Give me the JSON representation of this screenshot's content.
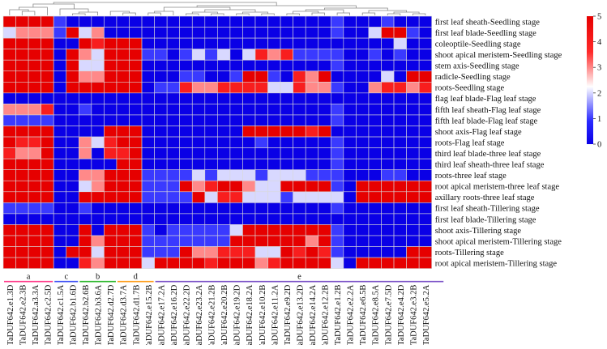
{
  "chart_data": {
    "type": "heatmap",
    "color_scale": {
      "min": 0,
      "max": 5,
      "ticks": [
        "0",
        "1",
        "2",
        "3",
        "4",
        "5"
      ],
      "colors": [
        "#0a00e6",
        "#2a2aff",
        "#ffffff",
        "#ff2a2a",
        "#e60000"
      ]
    },
    "groups": [
      {
        "label": "a",
        "color": "#ff3b8a",
        "start": 0,
        "end": 3
      },
      {
        "label": "c",
        "color": "#3f51f5",
        "start": 4,
        "end": 5
      },
      {
        "label": "b",
        "color": "#2eb82e",
        "start": 6,
        "end": 8
      },
      {
        "label": "d",
        "color": "#ff9e1b",
        "start": 9,
        "end": 11
      },
      {
        "label": "e",
        "color": "#7b52c7",
        "start": 12,
        "end": 34
      }
    ],
    "rows": [
      "first leaf sheath-Seedling stage",
      "first leaf blade-Seedling stage",
      "coleoptile-Seedling stage",
      "shoot apical meristem-Seedling stage",
      "stem axis-Seedling stage",
      "radicle-Seedling stage",
      "roots-Seedling stage",
      "flag leaf blade-Flag leaf stage",
      "fifth leaf sheath-Flag leaf stage",
      "fifth leaf blade-Flag leaf stage",
      "shoot axis-Flag leaf stage",
      "roots-Flag leaf stage",
      "third leaf blade-three leaf stage",
      "third leaf sheath-three leaf stage",
      "roots-three leaf stage",
      "root apical meristem-three leaf stage",
      "axillary roots-three leaf stage",
      "first leaf sheath-Tillering stage",
      "first leaf blade-Tillering stage",
      "shoot axis-Tillering stage",
      "shoot apical meristem-Tillering stage",
      "roots-Tillering stage",
      "root apical meristem-Tillering stage"
    ],
    "columns": [
      "TaDUF642.e1.3D",
      "TaDUF642.e2.3B",
      "TaDUF642.a3.3A",
      "TaDUF642.c2.5D",
      "TaDUF642.c1.5A",
      "TaDUF642.b1.6D",
      "TaDUF642.b2.6B",
      "TaDUF642.b3.6A",
      "TaDUF642.d2.7D",
      "TaDUF642.d3.7A",
      "TaDUF642.d1.7B",
      "TaDUF642.e15.2B",
      "TaDUF642.e17.2A",
      "TaDUF642.e16.2D",
      "TaDUF642.e22.2D",
      "TaDUF642.e23.2A",
      "TaDUF642.e21.2B",
      "TaDUF642.e20.2B",
      "TaDUF642.e19.2D",
      "TaDUF642.e18.2A",
      "TaDUF642.e10.2B",
      "TaDUF642.e11.2A",
      "TaDUF642.e9.2D",
      "TaDUF642.e13.2D",
      "TaDUF642.e14.2A",
      "TaDUF642.e12.2B",
      "TaDUF642.e1.2B",
      "TaDUF642.e2.2A",
      "TaDUF642.e6.5B",
      "TaDUF642.e8.5A",
      "TaDUF642.e7.5D",
      "TaDUF642.e4.2D",
      "TaDUF642.e3.2B",
      "TaDUF642.e5.2A"
    ],
    "values": [
      [
        5,
        5,
        5,
        5,
        1,
        0,
        0,
        0,
        0,
        0,
        0,
        0,
        0,
        0,
        0,
        0,
        0,
        0,
        0,
        0,
        0,
        0,
        0,
        0,
        0,
        0,
        1,
        0,
        0,
        0,
        1,
        0,
        0,
        0
      ],
      [
        2,
        3,
        3,
        3,
        1,
        5,
        2,
        3,
        0,
        0,
        0,
        0,
        0,
        0,
        0,
        0,
        0,
        0,
        0,
        0,
        0,
        0,
        0,
        0,
        0,
        0,
        1,
        0,
        0,
        2,
        5,
        5,
        1,
        0
      ],
      [
        5,
        5,
        5,
        5,
        0,
        0,
        5,
        4,
        5,
        5,
        5,
        0,
        0,
        0,
        0,
        0,
        0,
        0,
        0,
        0,
        0,
        0,
        0,
        0,
        0,
        0,
        0,
        0,
        0,
        0,
        0,
        2,
        0,
        0
      ],
      [
        5,
        5,
        5,
        5,
        0,
        5,
        3,
        2,
        5,
        5,
        5,
        1,
        1,
        0,
        1,
        2,
        1,
        2,
        0,
        2,
        4,
        3,
        4,
        1,
        1,
        1,
        1,
        0,
        0,
        1,
        0,
        1,
        0,
        0
      ],
      [
        5,
        5,
        5,
        5,
        0,
        5,
        2,
        2,
        5,
        5,
        5,
        0,
        0,
        0,
        0,
        0,
        0,
        0,
        0,
        0,
        0,
        0,
        0,
        0,
        0,
        0,
        1,
        0,
        0,
        0,
        0,
        0,
        0,
        0
      ],
      [
        5,
        5,
        5,
        5,
        0,
        5,
        3,
        3,
        5,
        5,
        5,
        0,
        0,
        0,
        1,
        1,
        0,
        0,
        1,
        5,
        5,
        1,
        0,
        4,
        3,
        5,
        0,
        0,
        0,
        0,
        2,
        0,
        5,
        5
      ],
      [
        5,
        5,
        5,
        5,
        0,
        5,
        5,
        5,
        5,
        5,
        5,
        0,
        1,
        1,
        4,
        3,
        3,
        4,
        4,
        4,
        4,
        2,
        2,
        4,
        3,
        3,
        1,
        0,
        0,
        3,
        4,
        4,
        3,
        4
      ],
      [
        0,
        0,
        0,
        0,
        0,
        0,
        0,
        0,
        0,
        0,
        0,
        0,
        0,
        0,
        0,
        0,
        0,
        0,
        0,
        0,
        0,
        0,
        0,
        0,
        0,
        0,
        0,
        0,
        0,
        0,
        0,
        0,
        0,
        0
      ],
      [
        3,
        3,
        3,
        4,
        0,
        0,
        1,
        0,
        0,
        0,
        0,
        0,
        0,
        0,
        0,
        0,
        0,
        0,
        0,
        0,
        0,
        0,
        0,
        0,
        0,
        0,
        1,
        0,
        0,
        0,
        0,
        0,
        0,
        0
      ],
      [
        1,
        1,
        1,
        1,
        0,
        0,
        0,
        0,
        0,
        0,
        0,
        0,
        0,
        0,
        0,
        0,
        0,
        0,
        0,
        0,
        0,
        0,
        0,
        0,
        0,
        0,
        1,
        0,
        0,
        0,
        0,
        0,
        0,
        0
      ],
      [
        5,
        5,
        5,
        5,
        0,
        0,
        0,
        0,
        5,
        5,
        5,
        0,
        0,
        0,
        0,
        0,
        0,
        0,
        0,
        5,
        5,
        5,
        5,
        5,
        4,
        5,
        0,
        0,
        0,
        0,
        0,
        0,
        0,
        0
      ],
      [
        5,
        4,
        4,
        5,
        0,
        0,
        3,
        2,
        4,
        5,
        5,
        0,
        0,
        0,
        0,
        0,
        0,
        0,
        0,
        0,
        1,
        0,
        0,
        0,
        0,
        0,
        1,
        0,
        0,
        0,
        0,
        0,
        0,
        0
      ],
      [
        4,
        3,
        3,
        5,
        0,
        0,
        3,
        0,
        4,
        4,
        5,
        0,
        0,
        0,
        0,
        0,
        0,
        0,
        0,
        0,
        0,
        0,
        0,
        0,
        0,
        0,
        1,
        0,
        0,
        0,
        0,
        0,
        0,
        0
      ],
      [
        5,
        5,
        5,
        5,
        0,
        0,
        0,
        0,
        0,
        5,
        5,
        0,
        0,
        0,
        0,
        0,
        0,
        0,
        0,
        0,
        0,
        0,
        0,
        0,
        0,
        0,
        1,
        0,
        0,
        0,
        0,
        0,
        0,
        0
      ],
      [
        5,
        5,
        5,
        5,
        0,
        0,
        3,
        3,
        5,
        5,
        5,
        1,
        1,
        1,
        1,
        2,
        1,
        2,
        2,
        2,
        1,
        2,
        2,
        2,
        1,
        1,
        1,
        0,
        0,
        0,
        1,
        1,
        0,
        0
      ],
      [
        5,
        5,
        5,
        5,
        0,
        0,
        2,
        3,
        5,
        5,
        5,
        1,
        1,
        1,
        5,
        3,
        4,
        5,
        5,
        3,
        2,
        2,
        5,
        5,
        5,
        5,
        1,
        0,
        5,
        5,
        5,
        5,
        5,
        5
      ],
      [
        5,
        5,
        5,
        5,
        0,
        0,
        5,
        5,
        5,
        5,
        5,
        1,
        1,
        1,
        1,
        5,
        2,
        4,
        4,
        2,
        2,
        2,
        1,
        2,
        2,
        2,
        2,
        0,
        5,
        5,
        5,
        5,
        5,
        5
      ],
      [
        1,
        1,
        1,
        1,
        0,
        0,
        1,
        0,
        0,
        0,
        0,
        0,
        0,
        0,
        0,
        0,
        0,
        0,
        0,
        0,
        0,
        0,
        0,
        0,
        0,
        0,
        1,
        0,
        0,
        0,
        0,
        0,
        0,
        0
      ],
      [
        0,
        0,
        0,
        0,
        0,
        0,
        0,
        0,
        0,
        0,
        0,
        0,
        0,
        0,
        0,
        0,
        0,
        0,
        0,
        0,
        0,
        0,
        0,
        0,
        0,
        0,
        0,
        0,
        0,
        0,
        0,
        0,
        0,
        0
      ],
      [
        5,
        5,
        5,
        5,
        0,
        0,
        5,
        0,
        5,
        5,
        5,
        1,
        0,
        1,
        1,
        1,
        1,
        1,
        2,
        5,
        5,
        5,
        5,
        5,
        5,
        5,
        1,
        0,
        0,
        0,
        0,
        0,
        0,
        0
      ],
      [
        5,
        5,
        5,
        5,
        0,
        0,
        5,
        3,
        5,
        5,
        5,
        1,
        1,
        1,
        1,
        1,
        1,
        1,
        5,
        5,
        5,
        5,
        5,
        5,
        3,
        5,
        1,
        0,
        0,
        0,
        0,
        0,
        0,
        0
      ],
      [
        5,
        5,
        5,
        5,
        0,
        5,
        5,
        2,
        5,
        5,
        5,
        1,
        1,
        1,
        5,
        3,
        3,
        4,
        4,
        4,
        2,
        2,
        5,
        4,
        5,
        4,
        1,
        0,
        0,
        0,
        0,
        0,
        5,
        5
      ],
      [
        5,
        5,
        5,
        5,
        0,
        0,
        4,
        3,
        5,
        5,
        5,
        2,
        5,
        5,
        5,
        5,
        4,
        5,
        5,
        5,
        3,
        4,
        5,
        5,
        5,
        5,
        2,
        0,
        5,
        5,
        5,
        5,
        5,
        5
      ]
    ]
  }
}
